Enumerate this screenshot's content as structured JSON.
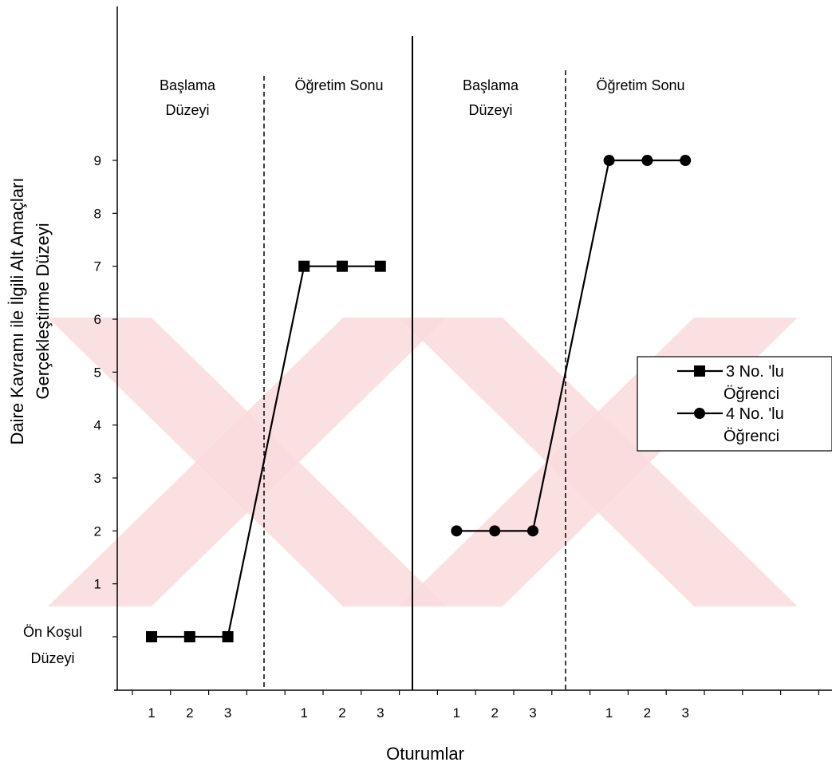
{
  "chart_data": {
    "type": "line",
    "ylabel_lines": [
      "Daire Kavramı ile İlgili Alt Amaçları",
      "Gerçekleştirme Düzeyi"
    ],
    "xlabel": "Oturumlar",
    "y_ticks": [
      "1",
      "2",
      "3",
      "4",
      "5",
      "6",
      "7",
      "8",
      "9"
    ],
    "y_baseline_label_lines": [
      "Ön Koşul",
      "Düzeyi"
    ],
    "ylim": [
      -1,
      10
    ],
    "x_tick_labels": [
      "1",
      "2",
      "3",
      "1",
      "2",
      "3",
      "1",
      "2",
      "3",
      "1",
      "2",
      "3"
    ],
    "phase_labels": [
      {
        "lines": [
          "Başlama",
          "Düzeyi"
        ]
      },
      {
        "lines": [
          "Öğretim Sonu"
        ]
      },
      {
        "lines": [
          "Başlama",
          "Düzeyi"
        ]
      },
      {
        "lines": [
          "Öğretim Sonu"
        ]
      }
    ],
    "legend_position": "right",
    "series": [
      {
        "name": "3 No. 'lu Öğrenci",
        "legend_lines": [
          "3 No. 'lu",
          "Öğrenci"
        ],
        "marker": "square",
        "x": [
          1,
          2,
          3,
          5,
          6,
          7
        ],
        "y": [
          0,
          0,
          0,
          7,
          7,
          7
        ]
      },
      {
        "name": "4 No. 'lu Öğrenci",
        "legend_lines": [
          "4 No. 'lu",
          "Öğrenci"
        ],
        "marker": "circle",
        "x": [
          9,
          10,
          11,
          13,
          14,
          15
        ],
        "y": [
          2,
          2,
          2,
          9,
          9,
          9
        ]
      }
    ],
    "colors": {
      "line": "#000000",
      "marker": "#000000",
      "watermark": "#fadadd"
    },
    "watermark": "crossed-x-logo"
  }
}
